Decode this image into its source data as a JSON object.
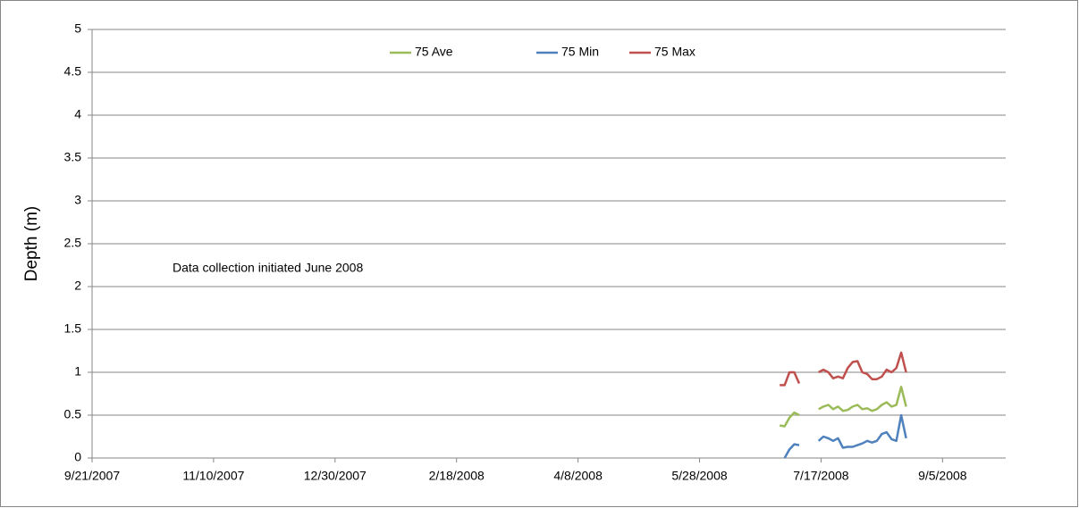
{
  "chart_data": {
    "type": "line",
    "y_label": "Depth (m)",
    "annotation": "Data collection initiated June 2008",
    "x": [
      "6/30/2008",
      "7/2/2008",
      "7/4/2008",
      "7/6/2008",
      "7/8/2008",
      "7/12/2008",
      "7/16/2008",
      "7/18/2008",
      "7/20/2008",
      "7/22/2008",
      "7/24/2008",
      "7/26/2008",
      "7/28/2008",
      "7/30/2008",
      "8/1/2008",
      "8/3/2008",
      "8/5/2008",
      "8/7/2008",
      "8/9/2008",
      "8/11/2008",
      "8/13/2008",
      "8/15/2008",
      "8/17/2008",
      "8/19/2008",
      "8/21/2008"
    ],
    "series": [
      {
        "name": "75 Ave",
        "color": "#9bbb59",
        "values": [
          0.38,
          0.37,
          0.47,
          0.53,
          0.5,
          null,
          0.57,
          0.6,
          0.62,
          0.57,
          0.6,
          0.55,
          0.56,
          0.6,
          0.62,
          0.57,
          0.58,
          0.55,
          0.57,
          0.62,
          0.65,
          0.6,
          0.62,
          0.83,
          0.6
        ]
      },
      {
        "name": "75 Min",
        "color": "#4f81bd",
        "values": [
          null,
          0.0,
          0.1,
          0.16,
          0.15,
          null,
          0.2,
          0.25,
          0.23,
          0.2,
          0.23,
          0.12,
          0.13,
          0.13,
          0.15,
          0.17,
          0.2,
          0.18,
          0.2,
          0.28,
          0.3,
          0.22,
          0.2,
          0.5,
          0.23
        ]
      },
      {
        "name": "75 Max",
        "color": "#c0504d",
        "values": [
          0.85,
          0.85,
          1.0,
          1.0,
          0.87,
          null,
          1.0,
          1.03,
          1.0,
          0.93,
          0.95,
          0.93,
          1.05,
          1.12,
          1.13,
          1.0,
          0.98,
          0.92,
          0.92,
          0.95,
          1.03,
          1.0,
          1.05,
          1.23,
          1.0
        ]
      }
    ],
    "xlim": [
      "9/21/2007",
      "10/1/2008"
    ],
    "xticks": [
      "9/21/2007",
      "11/10/2007",
      "12/30/2007",
      "2/18/2008",
      "4/8/2008",
      "5/28/2008",
      "7/17/2008",
      "9/5/2008"
    ],
    "ylim": [
      0,
      5
    ],
    "yticks": [
      0,
      0.5,
      1,
      1.5,
      2,
      2.5,
      3,
      3.5,
      4,
      4.5,
      5
    ],
    "grid": true,
    "legend": "top"
  }
}
